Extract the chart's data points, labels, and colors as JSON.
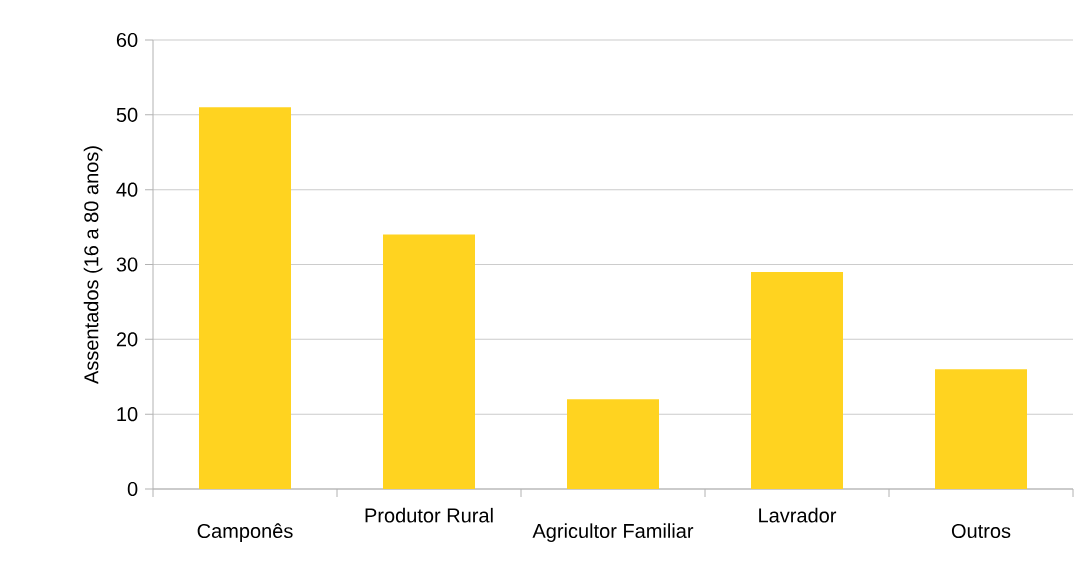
{
  "chart_data": {
    "type": "bar",
    "ylabel": "Assentados (16 a 80 anos)",
    "categories": [
      "Camponês",
      "Produtor Rural",
      "Agricultor Familiar",
      "Lavrador",
      "Outros"
    ],
    "values": [
      51,
      34,
      12,
      29,
      16
    ],
    "color": "#ffd320",
    "ylim": [
      0,
      60
    ],
    "yticks": [
      0,
      10,
      20,
      30,
      40,
      50,
      60
    ],
    "grid": "y"
  }
}
